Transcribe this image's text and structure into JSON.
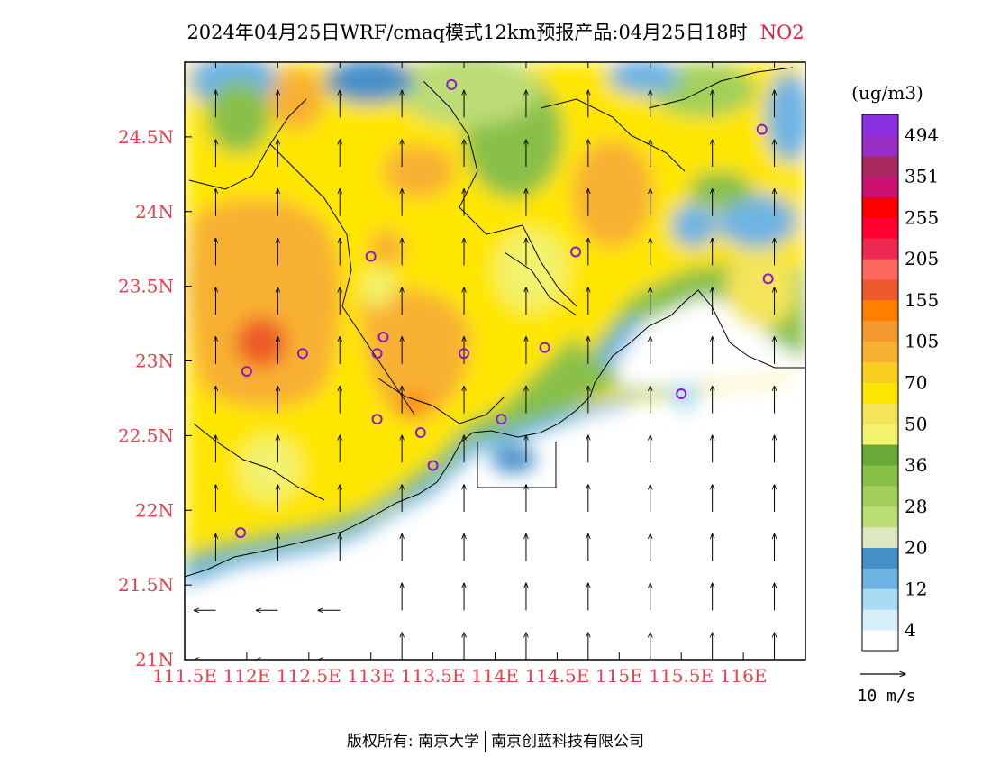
{
  "title": {
    "main": "2024年04月25日WRF/cmaq模式12km预报产品:04月25日18时",
    "species": "NO2"
  },
  "map": {
    "lon_labels": [
      "111.5E",
      "112E",
      "112.5E",
      "113E",
      "113.5E",
      "114E",
      "114.5E",
      "115E",
      "115.5E",
      "116E"
    ],
    "lat_labels": [
      "21N",
      "21.5N",
      "22N",
      "22.5N",
      "23N",
      "23.5N",
      "24N",
      "24.5N"
    ],
    "extent": {
      "lon": [
        111.5,
        116.5
      ],
      "lat": [
        21,
        25
      ]
    },
    "stations": [
      {
        "lon": 113.65,
        "lat": 24.85
      },
      {
        "lon": 116.15,
        "lat": 24.55
      },
      {
        "lon": 113.0,
        "lat": 23.7
      },
      {
        "lon": 114.65,
        "lat": 23.73
      },
      {
        "lon": 116.2,
        "lat": 23.55
      },
      {
        "lon": 112.45,
        "lat": 23.05
      },
      {
        "lon": 113.1,
        "lat": 23.16
      },
      {
        "lon": 113.05,
        "lat": 23.05
      },
      {
        "lon": 113.75,
        "lat": 23.05
      },
      {
        "lon": 114.4,
        "lat": 23.09
      },
      {
        "lon": 112.0,
        "lat": 22.93
      },
      {
        "lon": 115.5,
        "lat": 22.78
      },
      {
        "lon": 113.05,
        "lat": 22.61
      },
      {
        "lon": 114.05,
        "lat": 22.61
      },
      {
        "lon": 113.4,
        "lat": 22.52
      },
      {
        "lon": 113.5,
        "lat": 22.3
      },
      {
        "lon": 111.95,
        "lat": 21.85
      }
    ]
  },
  "legend": {
    "unit": "(ug/m3)",
    "colors": [
      "#ffffff",
      "#d8eefa",
      "#a8dcf4",
      "#6eb4e2",
      "#4690c8",
      "#dce8c0",
      "#bcdc74",
      "#a2d05a",
      "#88c048",
      "#6aa838",
      "#f2f26c",
      "#f4e45a",
      "#ffe600",
      "#fad020",
      "#f8b030",
      "#f49a30",
      "#ff8000",
      "#ee5a2c",
      "#ff6860",
      "#ee2850",
      "#ff0030",
      "#ff0000",
      "#cc1070",
      "#aa2860",
      "#9830c8",
      "#8a30e0"
    ],
    "labels": [
      {
        "text": "4",
        "boundary": 1
      },
      {
        "text": "12",
        "boundary": 3
      },
      {
        "text": "20",
        "boundary": 5
      },
      {
        "text": "28",
        "boundary": 7
      },
      {
        "text": "36",
        "boundary": 9
      },
      {
        "text": "50",
        "boundary": 11
      },
      {
        "text": "70",
        "boundary": 13
      },
      {
        "text": "105",
        "boundary": 15
      },
      {
        "text": "155",
        "boundary": 17
      },
      {
        "text": "205",
        "boundary": 19
      },
      {
        "text": "255",
        "boundary": 21
      },
      {
        "text": "351",
        "boundary": 23
      },
      {
        "text": "494",
        "boundary": 25
      }
    ]
  },
  "wind_scale": {
    "label": "10 m/s"
  },
  "footer": {
    "left": "版权所有: 南京大学",
    "right": "南京创蓝科技有限公司"
  }
}
